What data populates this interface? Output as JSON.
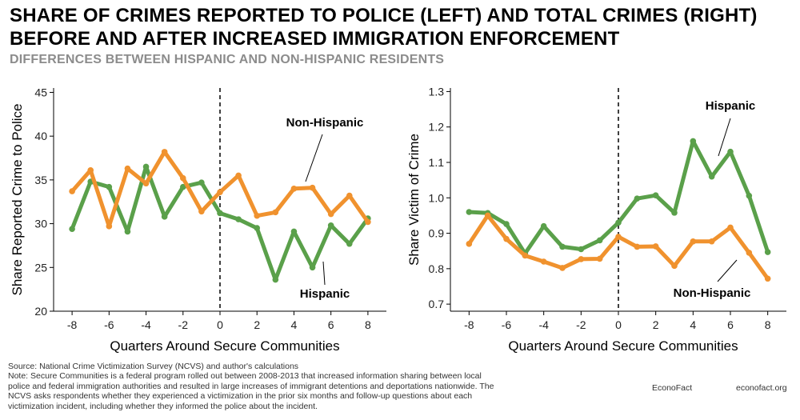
{
  "title": {
    "line1": "SHARE OF CRIMES REPORTED TO POLICE (LEFT) AND TOTAL CRIMES (RIGHT)",
    "line2": "BEFORE AND AFTER INCREASED IMMIGRATION ENFORCEMENT",
    "subtitle": "DIFFERENCES BETWEEN HISPANIC AND NON-HISPANIC RESIDENTS"
  },
  "colors": {
    "hispanic": "#5aa04a",
    "non_hispanic": "#f0922e",
    "axis": "#000000"
  },
  "chart_data": [
    {
      "type": "line",
      "xlabel": "Quarters Around Secure Communities",
      "ylabel": "Share Reported Crime to Police",
      "xlim": [
        -9,
        9
      ],
      "ylim": [
        20,
        45.5
      ],
      "xticks": [
        -8,
        -6,
        -4,
        -2,
        0,
        2,
        4,
        6,
        8
      ],
      "yticks": [
        20,
        25,
        30,
        35,
        40,
        45
      ],
      "x": [
        -8,
        -7,
        -6,
        -5,
        -4,
        -3,
        -2,
        -1,
        0,
        1,
        2,
        3,
        4,
        5,
        6,
        7,
        8
      ],
      "vline": 0,
      "series": [
        {
          "name": "Hispanic",
          "color": "#5aa04a",
          "values": [
            29.4,
            34.8,
            34.2,
            29.1,
            36.5,
            30.8,
            34.2,
            34.7,
            31.2,
            30.5,
            29.5,
            23.6,
            29.1,
            25.0,
            29.8,
            27.7,
            30.6
          ]
        },
        {
          "name": "Non-Hispanic",
          "color": "#f0922e",
          "values": [
            33.7,
            36.1,
            29.7,
            36.3,
            34.6,
            38.2,
            35.2,
            31.4,
            33.6,
            35.5,
            30.9,
            31.3,
            34.0,
            34.1,
            31.1,
            33.2,
            30.2
          ]
        }
      ],
      "annotations": [
        {
          "text": "Non-Hispanic",
          "series": "Non-Hispanic"
        },
        {
          "text": "Hispanic",
          "series": "Hispanic"
        }
      ]
    },
    {
      "type": "line",
      "xlabel": "Quarters Around Secure Communities",
      "ylabel": "Share Victim of Crime",
      "xlim": [
        -9,
        9
      ],
      "ylim": [
        0.68,
        1.31
      ],
      "xticks": [
        -8,
        -6,
        -4,
        -2,
        0,
        2,
        4,
        6,
        8
      ],
      "yticks": [
        0.7,
        0.8,
        0.9,
        1.0,
        1.1,
        1.2,
        1.3
      ],
      "ytick_labels": [
        "0.7",
        "0.8",
        "0.9",
        "1.0",
        "1.1",
        "1.2",
        "1.3"
      ],
      "x": [
        -8,
        -7,
        -6,
        -5,
        -4,
        -3,
        -2,
        -1,
        0,
        1,
        2,
        3,
        4,
        5,
        6,
        7,
        8
      ],
      "vline": 0,
      "series": [
        {
          "name": "Hispanic",
          "color": "#5aa04a",
          "values": [
            0.96,
            0.957,
            0.926,
            0.843,
            0.92,
            0.862,
            0.855,
            0.88,
            0.93,
            0.998,
            1.007,
            0.958,
            1.16,
            1.06,
            1.13,
            1.006,
            0.847
          ]
        },
        {
          "name": "Non-Hispanic",
          "color": "#f0922e",
          "values": [
            0.87,
            0.95,
            0.884,
            0.837,
            0.82,
            0.802,
            0.827,
            0.828,
            0.89,
            0.862,
            0.863,
            0.808,
            0.877,
            0.877,
            0.916,
            0.845,
            0.772
          ]
        }
      ],
      "annotations": [
        {
          "text": "Hispanic",
          "series": "Hispanic"
        },
        {
          "text": "Non-Hispanic",
          "series": "Non-Hispanic"
        }
      ]
    }
  ],
  "footer": {
    "source": "Source: National Crime Victimization Survey (NCVS) and author's calculations",
    "note": "Note: Secure Communities is a federal program rolled out between 2008-2013 that increased information sharing between local police and federal immigration authorities and resulted in large increases of immigrant detentions and deportations nationwide. The NCVS asks respondents whether they experienced a victimization in the prior six months and follow-up questions about each victimization incident, including whether they informed the police about the incident.",
    "brand": "EconoFact",
    "site": "econofact.org"
  }
}
